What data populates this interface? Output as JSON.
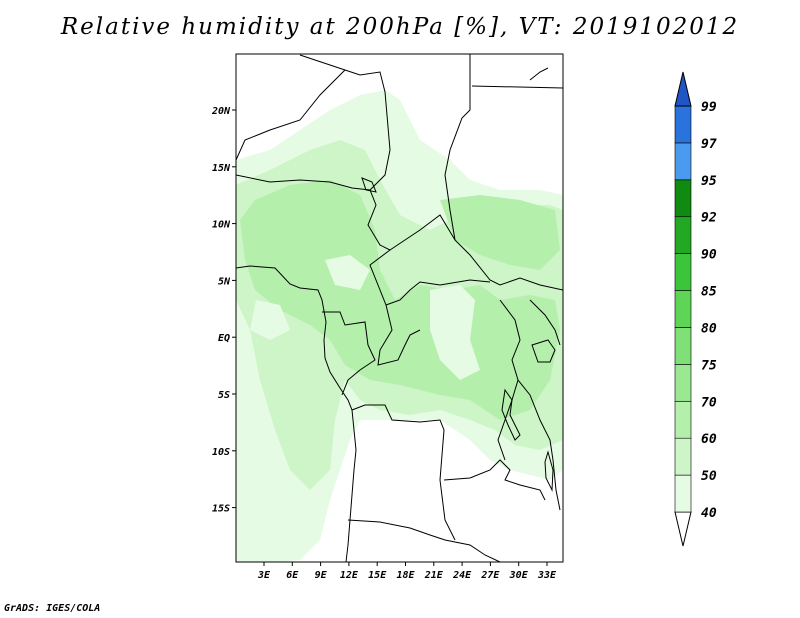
{
  "title": "Relative humidity at 200hPa [%], VT: 2019102012",
  "credit": "GrADS: IGES/COLA",
  "map": {
    "lat_labels": [
      "20N",
      "15N",
      "10N",
      "5N",
      "EQ",
      "5S",
      "10S",
      "15S"
    ],
    "lon_labels": [
      "3E",
      "6E",
      "9E",
      "12E",
      "15E",
      "18E",
      "21E",
      "24E",
      "27E",
      "30E",
      "33E"
    ]
  },
  "colorbar": {
    "levels": [
      "40",
      "50",
      "60",
      "70",
      "75",
      "80",
      "85",
      "90",
      "92",
      "95",
      "97",
      "99"
    ],
    "colors": [
      "#ffffff",
      "#e6fbe3",
      "#cdf5c8",
      "#b4efac",
      "#9be892",
      "#7ee076",
      "#5fd558",
      "#3cc43a",
      "#22a822",
      "#118a11",
      "#4a9af0",
      "#2a72dc",
      "#1f55c4"
    ]
  }
}
